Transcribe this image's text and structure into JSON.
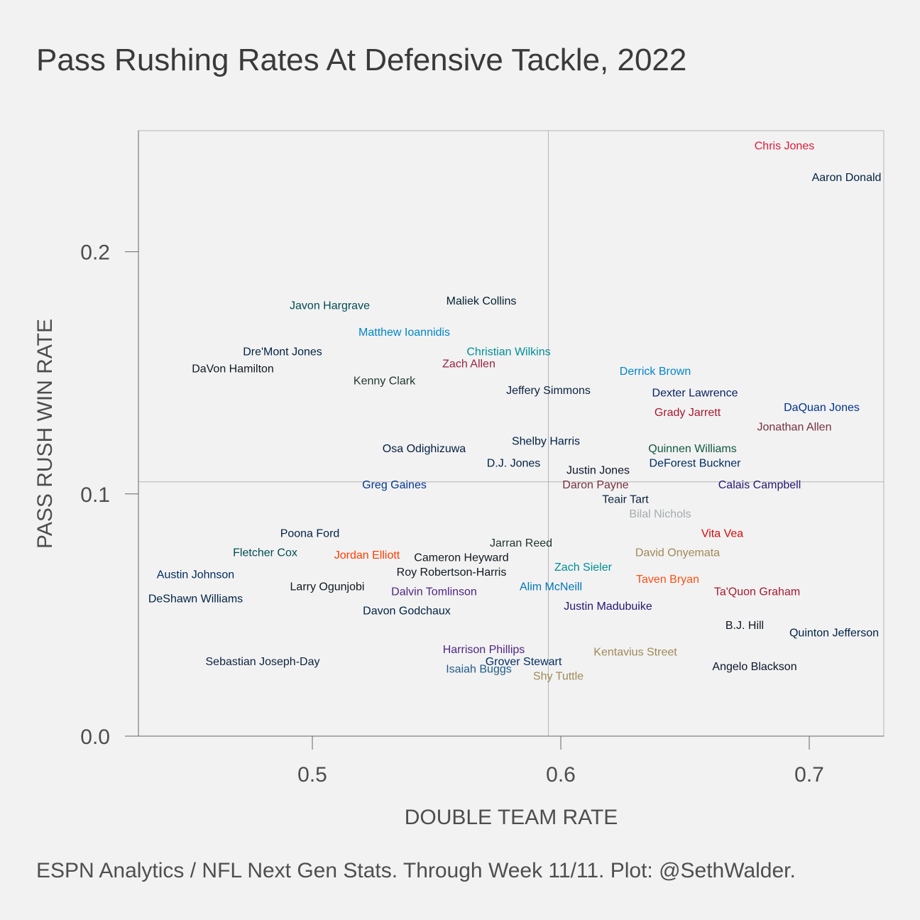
{
  "chart_data": {
    "type": "scatter",
    "title": "Pass Rushing Rates At Defensive Tackle, 2022",
    "caption": "ESPN Analytics / NFL Next Gen Stats. Through Week 11/11. Plot: @SethWalder.",
    "xlabel": "DOUBLE TEAM RATE",
    "ylabel": "PASS RUSH WIN RATE",
    "xlim": [
      0.43,
      0.73
    ],
    "ylim": [
      0.0,
      0.25
    ],
    "x_ticks": [
      0.5,
      0.6,
      0.7
    ],
    "x_tick_labels": [
      "0.5",
      "0.6",
      "0.7"
    ],
    "y_ticks": [
      0.0,
      0.1,
      0.2
    ],
    "y_tick_labels": [
      "0.0",
      "0.1",
      "0.2"
    ],
    "x_reference_line": 0.595,
    "y_reference_line": 0.105,
    "grid": false,
    "points": [
      {
        "name": "Chris Jones",
        "x": 0.69,
        "y": 0.244,
        "color": "#e31837"
      },
      {
        "name": "Aaron Donald",
        "x": 0.715,
        "y": 0.231,
        "color": "#002244"
      },
      {
        "name": "Javon Hargrave",
        "x": 0.507,
        "y": 0.178,
        "color": "#004c54"
      },
      {
        "name": "Maliek Collins",
        "x": 0.568,
        "y": 0.18,
        "color": "#03202f"
      },
      {
        "name": "Matthew Ioannidis",
        "x": 0.537,
        "y": 0.167,
        "color": "#0085ca"
      },
      {
        "name": "Dre'Mont Jones",
        "x": 0.488,
        "y": 0.159,
        "color": "#002244"
      },
      {
        "name": "Christian Wilkins",
        "x": 0.579,
        "y": 0.159,
        "color": "#008e97"
      },
      {
        "name": "DaVon Hamilton",
        "x": 0.468,
        "y": 0.152,
        "color": "#101820"
      },
      {
        "name": "Zach Allen",
        "x": 0.563,
        "y": 0.154,
        "color": "#97233f"
      },
      {
        "name": "Kenny Clark",
        "x": 0.529,
        "y": 0.147,
        "color": "#203731"
      },
      {
        "name": "Derrick Brown",
        "x": 0.638,
        "y": 0.151,
        "color": "#0085ca"
      },
      {
        "name": "Jeffery Simmons",
        "x": 0.595,
        "y": 0.143,
        "color": "#0c2340"
      },
      {
        "name": "Dexter Lawrence",
        "x": 0.654,
        "y": 0.142,
        "color": "#0b2265"
      },
      {
        "name": "Grady Jarrett",
        "x": 0.651,
        "y": 0.134,
        "color": "#a71930"
      },
      {
        "name": "DaQuan Jones",
        "x": 0.705,
        "y": 0.136,
        "color": "#00338d"
      },
      {
        "name": "Jonathan Allen",
        "x": 0.694,
        "y": 0.128,
        "color": "#773141"
      },
      {
        "name": "Shelby Harris",
        "x": 0.594,
        "y": 0.122,
        "color": "#002244"
      },
      {
        "name": "Osa Odighizuwa",
        "x": 0.545,
        "y": 0.119,
        "color": "#041e42"
      },
      {
        "name": "Quinnen Williams",
        "x": 0.653,
        "y": 0.119,
        "color": "#125740"
      },
      {
        "name": "DeForest Buckner",
        "x": 0.654,
        "y": 0.113,
        "color": "#002c5f"
      },
      {
        "name": "D.J. Jones",
        "x": 0.581,
        "y": 0.113,
        "color": "#002244"
      },
      {
        "name": "Justin Jones",
        "x": 0.615,
        "y": 0.11,
        "color": "#0b162a"
      },
      {
        "name": "Greg Gaines",
        "x": 0.533,
        "y": 0.104,
        "color": "#003594"
      },
      {
        "name": "Daron Payne",
        "x": 0.614,
        "y": 0.104,
        "color": "#773141"
      },
      {
        "name": "Calais Campbell",
        "x": 0.68,
        "y": 0.104,
        "color": "#241773"
      },
      {
        "name": "Teair Tart",
        "x": 0.626,
        "y": 0.098,
        "color": "#0c2340"
      },
      {
        "name": "Bilal Nichols",
        "x": 0.64,
        "y": 0.092,
        "color": "#a5acaf"
      },
      {
        "name": "Poona Ford",
        "x": 0.499,
        "y": 0.084,
        "color": "#002244"
      },
      {
        "name": "Vita Vea",
        "x": 0.665,
        "y": 0.084,
        "color": "#d50a0a"
      },
      {
        "name": "Jarran Reed",
        "x": 0.584,
        "y": 0.08,
        "color": "#203731"
      },
      {
        "name": "Fletcher Cox",
        "x": 0.481,
        "y": 0.076,
        "color": "#004c54"
      },
      {
        "name": "Jordan Elliott",
        "x": 0.522,
        "y": 0.075,
        "color": "#ff3c00"
      },
      {
        "name": "David Onyemata",
        "x": 0.647,
        "y": 0.076,
        "color": "#9f8958"
      },
      {
        "name": "Cameron Heyward",
        "x": 0.56,
        "y": 0.074,
        "color": "#101820"
      },
      {
        "name": "Austin Johnson",
        "x": 0.453,
        "y": 0.067,
        "color": "#002a5e"
      },
      {
        "name": "Zach Sieler",
        "x": 0.609,
        "y": 0.07,
        "color": "#008e97"
      },
      {
        "name": "Roy Robertson-Harris",
        "x": 0.556,
        "y": 0.068,
        "color": "#101820"
      },
      {
        "name": "Taven Bryan",
        "x": 0.643,
        "y": 0.065,
        "color": "#fb4f14"
      },
      {
        "name": "Larry Ogunjobi",
        "x": 0.506,
        "y": 0.062,
        "color": "#101820"
      },
      {
        "name": "Alim McNeill",
        "x": 0.596,
        "y": 0.062,
        "color": "#0076b6"
      },
      {
        "name": "Ta'Quon Graham",
        "x": 0.679,
        "y": 0.06,
        "color": "#a71930"
      },
      {
        "name": "Dalvin Tomlinson",
        "x": 0.549,
        "y": 0.06,
        "color": "#4f2683"
      },
      {
        "name": "DeShawn Williams",
        "x": 0.453,
        "y": 0.057,
        "color": "#002244"
      },
      {
        "name": "Justin Madubuike",
        "x": 0.619,
        "y": 0.054,
        "color": "#241773"
      },
      {
        "name": "Davon Godchaux",
        "x": 0.538,
        "y": 0.052,
        "color": "#002244"
      },
      {
        "name": "B.J. Hill",
        "x": 0.674,
        "y": 0.046,
        "color": "#101820"
      },
      {
        "name": "Quinton Jefferson",
        "x": 0.71,
        "y": 0.043,
        "color": "#002244"
      },
      {
        "name": "Harrison Phillips",
        "x": 0.569,
        "y": 0.036,
        "color": "#4f2683"
      },
      {
        "name": "Kentavius Street",
        "x": 0.63,
        "y": 0.035,
        "color": "#9f8958"
      },
      {
        "name": "Sebastian Joseph-Day",
        "x": 0.48,
        "y": 0.031,
        "color": "#0c2340"
      },
      {
        "name": "Grover Stewart",
        "x": 0.585,
        "y": 0.031,
        "color": "#002c5f"
      },
      {
        "name": "Isaiah Buggs",
        "x": 0.567,
        "y": 0.028,
        "color": "#1f5c8a"
      },
      {
        "name": "Angelo Blackson",
        "x": 0.678,
        "y": 0.029,
        "color": "#0b162a"
      },
      {
        "name": "Shy Tuttle",
        "x": 0.599,
        "y": 0.025,
        "color": "#9f8958"
      }
    ]
  }
}
